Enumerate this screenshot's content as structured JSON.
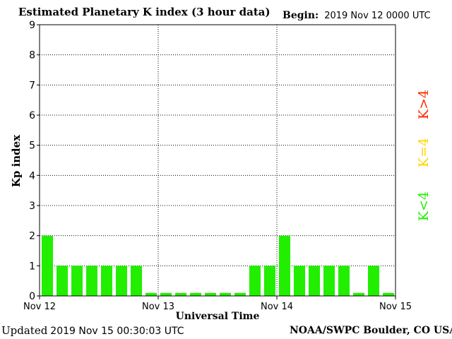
{
  "header": {
    "title": "Estimated Planetary K index (3 hour data)",
    "begin_label": "Begin:",
    "begin_value": "2019 Nov 12 0000 UTC"
  },
  "footer": {
    "updated_label": "Updated",
    "updated_value": "2019 Nov 15 00:30:03 UTC",
    "credit": "NOAA/SWPC Boulder, CO USA"
  },
  "legend": {
    "above": {
      "text": "K>4",
      "color": "#ff2a00"
    },
    "equal": {
      "text": "K=4",
      "color": "#ffd400"
    },
    "below": {
      "text": "K<4",
      "color": "#22ee00"
    }
  },
  "chart_data": {
    "type": "bar",
    "title": "Estimated Planetary K index (3 hour data)",
    "xlabel": "Universal Time",
    "ylabel": "Kp index",
    "ylim": [
      0,
      9
    ],
    "yticks": [
      "0",
      "1",
      "2",
      "3",
      "4",
      "5",
      "6",
      "7",
      "8",
      "9"
    ],
    "xticks": [
      "Nov 12",
      "Nov 13",
      "Nov 14",
      "Nov 15"
    ],
    "grid": true,
    "bar_color": "#22ee00",
    "values": [
      2,
      1,
      1,
      1,
      1,
      1,
      1,
      0.1,
      0.1,
      0.1,
      0.1,
      0.1,
      0.1,
      0.1,
      1,
      1,
      2,
      1,
      1,
      1,
      1,
      0.1,
      1,
      0.1
    ]
  }
}
